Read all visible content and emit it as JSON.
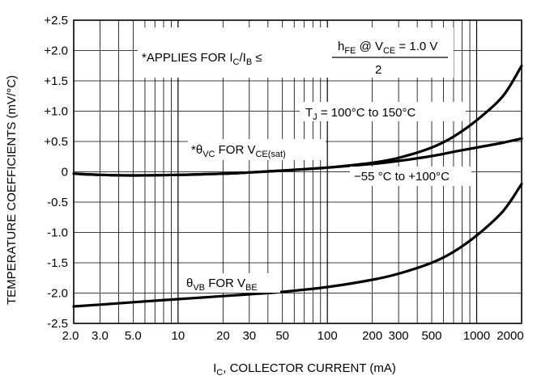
{
  "chart_data": {
    "type": "line",
    "xlabel": {
      "main": "I",
      "sub": "C",
      "rest": ", COLLECTOR CURRENT (mA)"
    },
    "ylabel": "TEMPERATURE COEFFICIENTS (mV/°C)",
    "x_scale": "log",
    "xlim": [
      2.0,
      2000
    ],
    "ylim": [
      -2.5,
      2.5
    ],
    "grid": true,
    "x_ticks": [
      {
        "value": 2.0,
        "label": "2.0"
      },
      {
        "value": 3.0,
        "label": "3.0"
      },
      {
        "value": 5.0,
        "label": "5.0"
      },
      {
        "value": 10,
        "label": "10"
      },
      {
        "value": 20,
        "label": "20"
      },
      {
        "value": 30,
        "label": "30"
      },
      {
        "value": 50,
        "label": "50"
      },
      {
        "value": 100,
        "label": "100"
      },
      {
        "value": 200,
        "label": "200"
      },
      {
        "value": 300,
        "label": "300"
      },
      {
        "value": 500,
        "label": "500"
      },
      {
        "value": 1000,
        "label": "1000"
      },
      {
        "value": 2000,
        "label": "2000"
      }
    ],
    "y_ticks": [
      {
        "value": 2.5,
        "label": "+2.5"
      },
      {
        "value": 2.0,
        "label": "+2.0"
      },
      {
        "value": 1.5,
        "label": "+1.5"
      },
      {
        "value": 1.0,
        "label": "+1.0"
      },
      {
        "value": 0.5,
        "label": "+0.5"
      },
      {
        "value": 0,
        "label": "0"
      },
      {
        "value": -0.5,
        "label": "-0.5"
      },
      {
        "value": -1.0,
        "label": "-1.0"
      },
      {
        "value": -1.5,
        "label": "-1.5"
      },
      {
        "value": -2.0,
        "label": "-2.0"
      },
      {
        "value": -2.5,
        "label": "-2.5"
      }
    ],
    "series": [
      {
        "x": [
          2,
          3,
          5,
          10,
          20,
          30,
          50,
          100,
          200,
          300,
          500,
          700,
          1000,
          1500,
          2000
        ],
        "y": [
          -0.03,
          -0.05,
          -0.06,
          -0.05,
          -0.03,
          -0.01,
          0.02,
          0.07,
          0.15,
          0.23,
          0.4,
          0.58,
          0.85,
          1.25,
          1.75
        ]
      },
      {
        "x": [
          2,
          3,
          5,
          10,
          20,
          30,
          50,
          100,
          200,
          300,
          500,
          700,
          1000,
          1500,
          2000
        ],
        "y": [
          -0.03,
          -0.05,
          -0.06,
          -0.05,
          -0.03,
          -0.01,
          0.02,
          0.07,
          0.13,
          0.18,
          0.26,
          0.33,
          0.4,
          0.48,
          0.55
        ]
      },
      {
        "x": [
          2,
          3,
          5,
          10,
          20,
          30,
          50,
          100,
          200,
          300,
          500,
          700,
          1000,
          1500,
          2000
        ],
        "y": [
          -2.22,
          -2.19,
          -2.15,
          -2.1,
          -2.05,
          -2.02,
          -1.98,
          -1.9,
          -1.78,
          -1.68,
          -1.5,
          -1.32,
          -1.05,
          -0.65,
          -0.2
        ]
      }
    ],
    "annotations": {
      "applies": {
        "text": "*APPLIES FOR I",
        "sub1": "C",
        "mid": "/I",
        "sub2": "B",
        "rel": " ≤"
      },
      "fraction": {
        "num_a": "h",
        "num_a_sub": "FE",
        "num_b": " @ V",
        "num_b_sub": "CE",
        "num_c": "  =  1.0 V",
        "den": "2"
      },
      "tj": {
        "a": "T",
        "a_sub": "J",
        "b": " = 100°C to 150°C"
      },
      "range": {
        "text": "−55 °C to +100°C"
      },
      "theta_vc": {
        "a": "*θ",
        "a_sub": "VC",
        "b": " FOR V",
        "b_sub": "CE(sat)"
      },
      "theta_vb": {
        "a": "θ",
        "a_sub": "VB",
        "b": " FOR V",
        "b_sub": "BE"
      }
    }
  }
}
